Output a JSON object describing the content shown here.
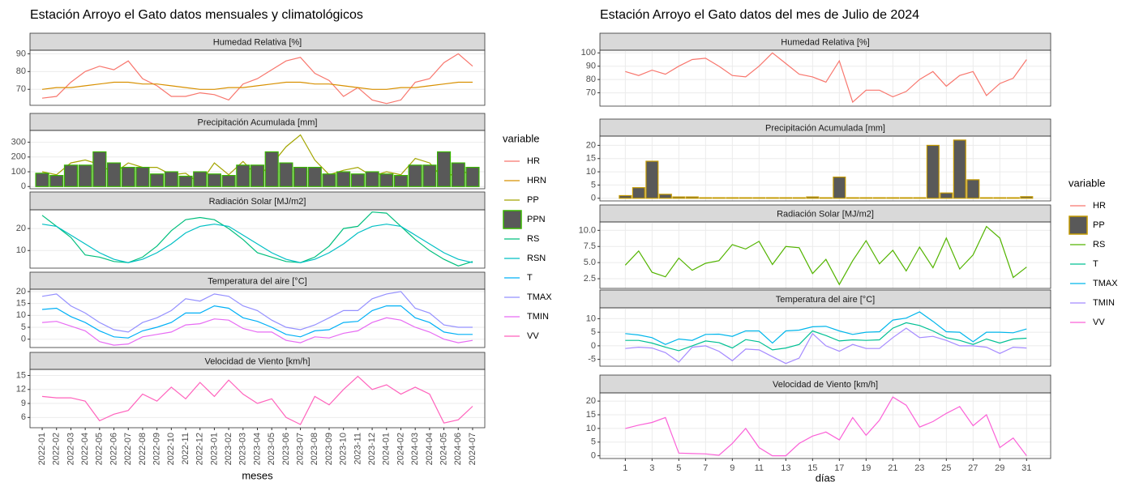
{
  "chart_data": [
    {
      "type": "line",
      "title": "Estación Arroyo el Gato datos mensuales y climatológicos",
      "x_label": "meses",
      "legend_title": "variable",
      "categories": [
        "2022-01",
        "2022-02",
        "2022-03",
        "2022-04",
        "2022-05",
        "2022-06",
        "2022-07",
        "2022-08",
        "2022-09",
        "2022-10",
        "2022-11",
        "2022-12",
        "2023-01",
        "2023-02",
        "2023-03",
        "2023-04",
        "2023-05",
        "2023-06",
        "2023-07",
        "2023-08",
        "2023-09",
        "2023-10",
        "2023-11",
        "2023-12",
        "2024-01",
        "2024-02",
        "2024-03",
        "2024-04",
        "2024-05",
        "2024-06",
        "2024-07"
      ],
      "panels": [
        {
          "title": "Humedad Relativa [%]",
          "ylim": [
            61,
            92
          ],
          "yticks": [
            70,
            80,
            90
          ],
          "series": [
            {
              "name": "HR",
              "color": "#F8766D",
              "values": [
                65,
                66,
                74,
                80,
                83,
                81,
                86,
                76,
                72,
                66,
                66,
                68,
                67,
                64,
                73,
                76,
                81,
                86,
                88,
                79,
                75,
                66,
                71,
                64,
                62,
                64,
                74,
                76,
                85,
                90,
                83
              ]
            },
            {
              "name": "HRN",
              "color": "#D89000",
              "values": [
                70,
                71,
                71,
                72,
                73,
                74,
                74,
                73,
                73,
                72,
                71,
                70,
                70,
                71,
                71,
                72,
                73,
                74,
                74,
                73,
                73,
                72,
                71,
                70,
                70,
                71,
                71,
                72,
                73,
                74,
                74
              ]
            }
          ]
        },
        {
          "title": "Precipitación Acumulada [mm]",
          "ylim": [
            -15,
            380
          ],
          "yticks": [
            0,
            100,
            200,
            300
          ],
          "series": [
            {
              "name": "PP",
              "color": "#A3A500",
              "values": [
                100,
                80,
                160,
                180,
                150,
                90,
                160,
                130,
                130,
                80,
                90,
                20,
                160,
                80,
                170,
                70,
                150,
                270,
                350,
                180,
                80,
                110,
                130,
                70,
                100,
                80,
                190,
                160,
                50,
                110,
                80
              ]
            },
            {
              "name": "PPN",
              "type": "bar",
              "color": "#39B600",
              "fill": "#595959",
              "values": [
                90,
                75,
                145,
                145,
                235,
                160,
                130,
                130,
                85,
                100,
                70,
                100,
                85,
                75,
                145,
                145,
                235,
                160,
                130,
                130,
                85,
                100,
                85,
                100,
                85,
                75,
                145,
                145,
                235,
                160,
                130
              ]
            }
          ]
        },
        {
          "title": "Radiación Solar [MJ/m2]",
          "ylim": [
            2,
            28.5
          ],
          "yticks": [
            10,
            20
          ],
          "series": [
            {
              "name": "RS",
              "color": "#00BF7D",
              "values": [
                26,
                21,
                16,
                8,
                7,
                5,
                4.5,
                7,
                12,
                19,
                24,
                25,
                24,
                20,
                15,
                9,
                7,
                5,
                4.5,
                7,
                12,
                20,
                21,
                27.5,
                27,
                21,
                15,
                10,
                6,
                3,
                5
              ]
            },
            {
              "name": "RSN",
              "color": "#00BFC4",
              "values": [
                22,
                21,
                17,
                13,
                9,
                6,
                4.5,
                6,
                9,
                13,
                18,
                21,
                22,
                21,
                17,
                13,
                9,
                6,
                4.5,
                6,
                9,
                13,
                18,
                21,
                22,
                21,
                17,
                13,
                9,
                6,
                4.5
              ]
            }
          ]
        },
        {
          "title": "Temperatura del aire [°C]",
          "ylim": [
            -3.5,
            21
          ],
          "yticks": [
            0,
            5,
            10,
            15,
            20
          ],
          "series": [
            {
              "name": "T",
              "color": "#00B0F6",
              "values": [
                12.5,
                13,
                9.5,
                7,
                3.5,
                1,
                0.5,
                3.5,
                5,
                7,
                11,
                11,
                14,
                13,
                9,
                7.5,
                5,
                2,
                1,
                3.5,
                4,
                7,
                7.5,
                12,
                14,
                14,
                9,
                7,
                3,
                2,
                2
              ]
            },
            {
              "name": "TMAX",
              "color": "#9590FF",
              "values": [
                18,
                19,
                14,
                11,
                7,
                4,
                3,
                7,
                9,
                12,
                17,
                16,
                19,
                18,
                14,
                12,
                8,
                5,
                4,
                6,
                9,
                12,
                12,
                17,
                19,
                20,
                13,
                11,
                6,
                5,
                5
              ]
            },
            {
              "name": "TMIN",
              "color": "#E76BF3",
              "values": [
                7,
                7.5,
                5.5,
                3.5,
                -1,
                -2.5,
                -2,
                1,
                2,
                3,
                6,
                6.5,
                8.5,
                8,
                4.5,
                3,
                3,
                -0.5,
                -1.5,
                1,
                0.5,
                2.5,
                3.5,
                7,
                9,
                8,
                5,
                3,
                0,
                -1.5,
                -0.5
              ]
            }
          ]
        },
        {
          "title": "Velocidad de Viento [km/h]",
          "ylim": [
            3.8,
            16.3
          ],
          "yticks": [
            6,
            9,
            12,
            15
          ],
          "series": [
            {
              "name": "VV",
              "color": "#FF62BC",
              "values": [
                10.5,
                10.2,
                10.2,
                9.5,
                5.3,
                6.7,
                7.5,
                11,
                9.5,
                12.5,
                10,
                13.5,
                10.5,
                14,
                11,
                9,
                10,
                6,
                4.5,
                10.5,
                8.7,
                12,
                14.8,
                12,
                13,
                11,
                12.5,
                11,
                4.8,
                5.5,
                8.4
              ]
            }
          ]
        }
      ]
    },
    {
      "type": "line",
      "title": "Estación Arroyo el Gato datos del mes de Julio de 2024",
      "x_label": "días",
      "legend_title": "variable",
      "x": [
        1,
        2,
        3,
        4,
        5,
        6,
        7,
        8,
        9,
        10,
        11,
        12,
        13,
        14,
        15,
        16,
        17,
        18,
        19,
        20,
        21,
        22,
        23,
        24,
        25,
        26,
        27,
        28,
        29,
        30,
        31
      ],
      "xlim": [
        -0.9,
        32.8
      ],
      "xticks": [
        1,
        3,
        5,
        7,
        9,
        11,
        13,
        15,
        17,
        19,
        21,
        23,
        25,
        27,
        29,
        31
      ],
      "panels": [
        {
          "title": "Humedad Relativa [%]",
          "ylim": [
            60,
            102
          ],
          "yticks": [
            70,
            80,
            90,
            100
          ],
          "series": [
            {
              "name": "HR",
              "color": "#F8766D",
              "values": [
                86,
                83,
                87,
                84,
                90,
                95,
                96,
                90,
                83,
                82,
                90,
                100,
                92,
                84,
                82,
                78,
                94,
                63,
                72,
                72,
                67,
                71,
                80,
                86,
                75,
                83,
                86,
                68,
                77,
                81,
                95
              ]
            }
          ]
        },
        {
          "title": "Precipitación Acumulada [mm]",
          "ylim": [
            -1,
            23.5
          ],
          "yticks": [
            0,
            5,
            10,
            15,
            20
          ],
          "series": [
            {
              "name": "PP",
              "type": "bar",
              "color": "#C49A00",
              "fill": "#595959",
              "values": [
                1,
                4,
                14,
                1.5,
                0.5,
                0.5,
                0.2,
                0.2,
                0.2,
                0.2,
                0.2,
                0.2,
                0.2,
                0.2,
                0.5,
                0.2,
                8,
                0.2,
                0.2,
                0.2,
                0.2,
                0.2,
                0.2,
                20,
                2,
                22,
                7,
                0.2,
                0.2,
                0.2,
                0.6
              ]
            }
          ]
        },
        {
          "title": "Radiación Solar [MJ/m2]",
          "ylim": [
            1,
            11.3
          ],
          "yticks": [
            2.5,
            {
              "value": 5,
              "label": "5.0"
            },
            7.5,
            {
              "value": 10,
              "label": "10.0"
            }
          ],
          "series": [
            {
              "name": "RS",
              "color": "#53B400",
              "values": [
                4.6,
                6.8,
                3.5,
                2.8,
                5.7,
                3.8,
                4.9,
                5.3,
                7.8,
                7.1,
                8.3,
                4.7,
                7.5,
                7.3,
                3.3,
                5.5,
                1.6,
                5.3,
                8.4,
                4.8,
                6.9,
                3.7,
                7.4,
                4.2,
                8.8,
                4.0,
                6.2,
                10.6,
                8.8,
                2.7,
                4.3
              ]
            }
          ]
        },
        {
          "title": "Temperatura del aire [°C]",
          "ylim": [
            -7.5,
            14
          ],
          "yticks": [
            -5,
            0,
            5,
            10
          ],
          "series": [
            {
              "name": "T",
              "color": "#00C094",
              "values": [
                2,
                2,
                1,
                -0.5,
                -1.8,
                0,
                1.8,
                1.2,
                -0.8,
                2.3,
                1.5,
                -1.5,
                -0.8,
                0.5,
                5.5,
                3.8,
                1.8,
                2.2,
                2,
                2.2,
                6.5,
                8.5,
                7.5,
                5.5,
                3,
                2,
                0.5,
                2.5,
                1,
                2.5,
                2.8
              ]
            },
            {
              "name": "TMAX",
              "color": "#00B6EB",
              "values": [
                4.5,
                4,
                3,
                0.5,
                2.5,
                2,
                4.2,
                4.3,
                3.5,
                5.5,
                5.5,
                1,
                5.5,
                5.8,
                7,
                7.2,
                5.5,
                4.2,
                5,
                5.2,
                9.5,
                10.2,
                12.5,
                9,
                5.2,
                5,
                1.5,
                5,
                5,
                4.8,
                6.2
              ]
            },
            {
              "name": "TMIN",
              "color": "#A58AFF",
              "values": [
                -1,
                -0.5,
                -0.8,
                -2.5,
                -6,
                -0.5,
                0,
                -2,
                -5.5,
                -1.2,
                -1.5,
                -4,
                -6.5,
                -4.5,
                4.5,
                0,
                -2,
                0.5,
                -1,
                -1,
                3,
                6.5,
                3,
                3.5,
                2,
                0,
                0,
                -0.5,
                -2.8,
                -0.5,
                -0.8
              ]
            }
          ]
        },
        {
          "title": "Velocidad de Viento [km/h]",
          "ylim": [
            -1,
            23
          ],
          "yticks": [
            0,
            5,
            10,
            15,
            20
          ],
          "series": [
            {
              "name": "VV",
              "color": "#FB61D7",
              "values": [
                10,
                11.2,
                12.2,
                14,
                1,
                0.8,
                0.7,
                0.2,
                4.5,
                10,
                3,
                0,
                0,
                4.5,
                7.2,
                8.7,
                5.8,
                14,
                7.5,
                13,
                21.5,
                18.5,
                10.5,
                12.5,
                15.5,
                18,
                11,
                15,
                3,
                6.5,
                0
              ]
            }
          ]
        }
      ]
    }
  ]
}
